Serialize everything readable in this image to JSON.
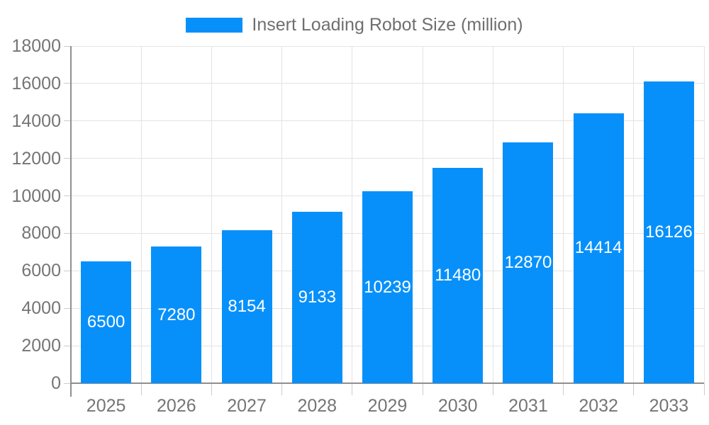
{
  "chart_data": {
    "type": "bar",
    "title": "Insert Loading Robot Size (million)",
    "series_name": "Insert Loading Robot Size (million)",
    "categories": [
      "2025",
      "2026",
      "2027",
      "2028",
      "2029",
      "2030",
      "2031",
      "2032",
      "2033"
    ],
    "values": [
      6500,
      7280,
      8154,
      9133,
      10239,
      11480,
      12870,
      14414,
      16126
    ],
    "value_labels": [
      "6500",
      "7280",
      "8154",
      "9133",
      "10239",
      "11480",
      "12870",
      "14414",
      "16126"
    ],
    "xlabel": "",
    "ylabel": "",
    "ylim": [
      0,
      18000
    ],
    "ytick_step": 2000,
    "yticks": [
      "0",
      "2000",
      "4000",
      "6000",
      "8000",
      "10000",
      "12000",
      "14000",
      "16000",
      "18000"
    ],
    "grid": true,
    "legend_position": "top-center",
    "colors": {
      "bar": "#0890FA",
      "bar_value_label": "#ffffff",
      "axis_text": "#757575",
      "legend_text": "#6f6f6f",
      "gridline": "#e3e3e3",
      "axis_line": "#8f8f8f",
      "tick_mark": "#cccccc",
      "background": "#ffffff"
    }
  }
}
